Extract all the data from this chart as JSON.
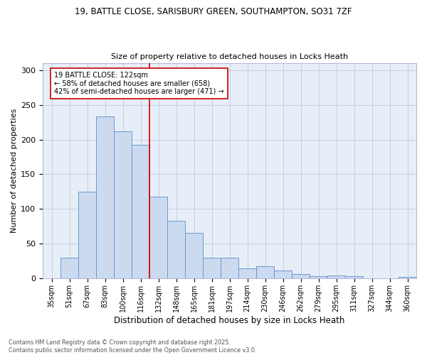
{
  "title_line1": "19, BATTLE CLOSE, SARISBURY GREEN, SOUTHAMPTON, SO31 7ZF",
  "title_line2": "Size of property relative to detached houses in Locks Heath",
  "xlabel": "Distribution of detached houses by size in Locks Heath",
  "ylabel": "Number of detached properties",
  "categories": [
    "35sqm",
    "51sqm",
    "67sqm",
    "83sqm",
    "100sqm",
    "116sqm",
    "132sqm",
    "148sqm",
    "165sqm",
    "181sqm",
    "197sqm",
    "214sqm",
    "230sqm",
    "246sqm",
    "262sqm",
    "279sqm",
    "295sqm",
    "311sqm",
    "327sqm",
    "344sqm",
    "360sqm"
  ],
  "values": [
    0,
    30,
    125,
    233,
    212,
    192,
    118,
    83,
    65,
    30,
    30,
    14,
    17,
    11,
    6,
    3,
    4,
    3,
    0,
    0,
    2
  ],
  "bar_color": "#ccdaf0",
  "bar_edge_color": "#6699cc",
  "grid_color": "#bbccdd",
  "background_color": "#e8eef8",
  "vline_x": 5.5,
  "vline_color": "#cc0000",
  "annotation_text": "19 BATTLE CLOSE: 122sqm\n← 58% of detached houses are smaller (658)\n42% of semi-detached houses are larger (471) →",
  "annotation_box_color": "#cc0000",
  "ylim": [
    0,
    310
  ],
  "yticks": [
    0,
    50,
    100,
    150,
    200,
    250,
    300
  ],
  "footer_line1": "Contains HM Land Registry data © Crown copyright and database right 2025.",
  "footer_line2": "Contains public sector information licensed under the Open Government Licence v3.0."
}
